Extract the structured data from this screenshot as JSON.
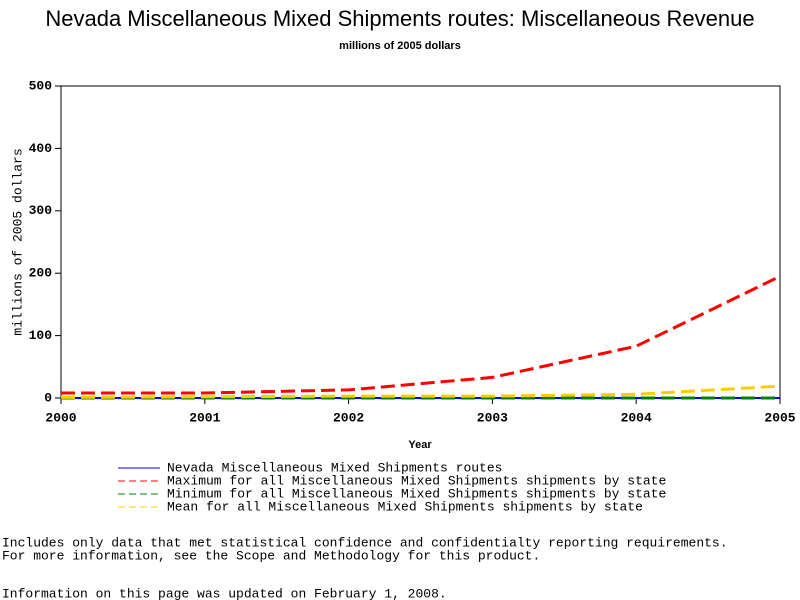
{
  "chart_data": {
    "type": "line",
    "title": "Nevada Miscellaneous Mixed Shipments routes: Miscellaneous Revenue",
    "subtitle": "millions of 2005 dollars",
    "y_label": "millions of 2005 dollars",
    "x_label": "Year",
    "x": [
      2000,
      2001,
      2002,
      2003,
      2004,
      2005
    ],
    "xlim": [
      2000,
      2005
    ],
    "xticks": [
      2000,
      2001,
      2002,
      2003,
      2004,
      2005
    ],
    "ylim": [
      0,
      500
    ],
    "yticks": [
      0,
      100,
      200,
      300,
      400,
      500
    ],
    "series": [
      {
        "name": "Nevada Miscellaneous Mixed Shipments routes",
        "color": "#0000ff",
        "dashed": false,
        "values": [
          0,
          0,
          0,
          0,
          0,
          0
        ]
      },
      {
        "name": "Maximum for all Miscellaneous Mixed Shipments shipments by state",
        "color": "#ff0000",
        "dashed": true,
        "values": [
          8,
          8,
          13,
          33,
          83,
          195
        ]
      },
      {
        "name": "Minimum for all Miscellaneous Mixed Shipments shipments by state",
        "color": "#008000",
        "dashed": true,
        "values": [
          0,
          0,
          0,
          0,
          0,
          0
        ]
      },
      {
        "name": "Mean for all Miscellaneous Mixed Shipments shipments by state",
        "color": "#ffcc00",
        "dashed": true,
        "values": [
          1,
          2,
          3,
          3,
          6,
          19
        ]
      }
    ]
  },
  "notes": [
    "Includes only data that met statistical confidence and confidentialty reporting requirements.",
    "For more information, see the Scope and Methodology for this product.",
    "Information on this page was updated on February 1, 2008."
  ]
}
